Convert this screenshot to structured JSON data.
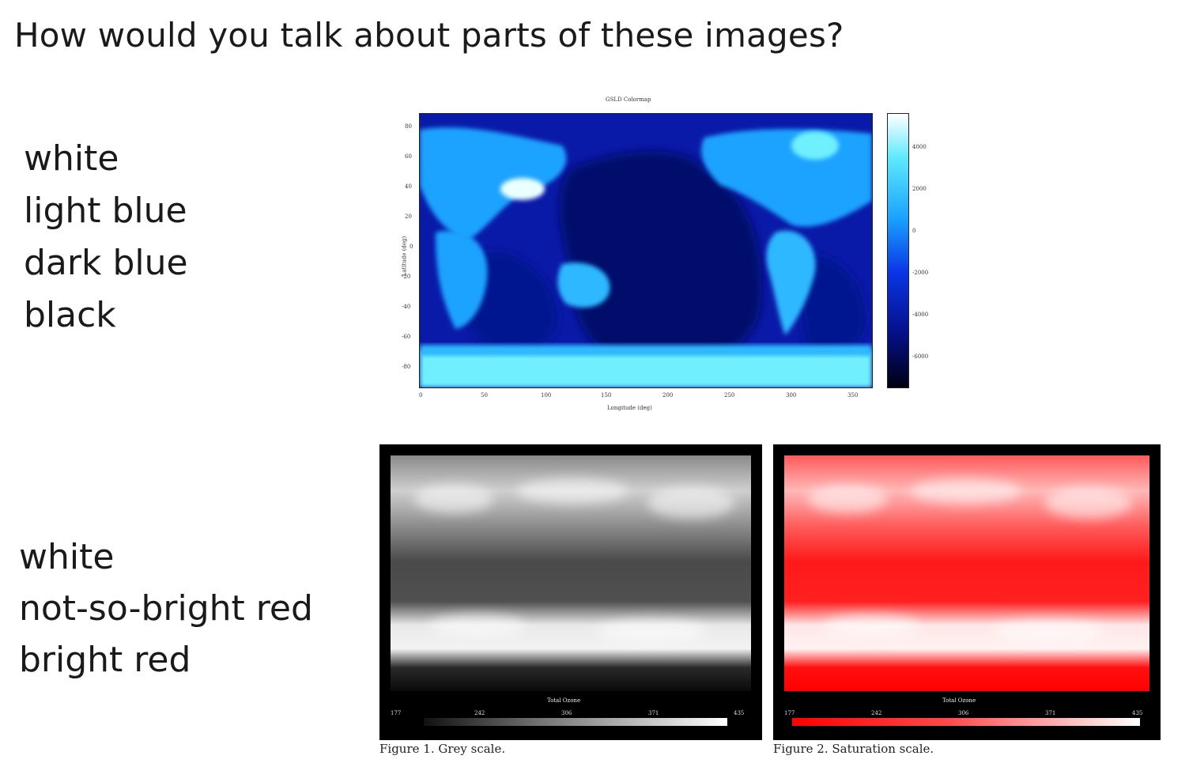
{
  "slide": {
    "title": "How would you talk about parts of these images?"
  },
  "blue_terms": [
    "white",
    "light blue",
    "dark blue",
    "black"
  ],
  "red_terms": [
    "white",
    "not-so-bright red",
    "bright red"
  ],
  "figures": {
    "top_map": {
      "title": "GSLD Colormap",
      "xlabel": "Longitude (deg)",
      "ylabel": "Latitude (deg)",
      "x_ticks": [
        "0",
        "50",
        "100",
        "150",
        "200",
        "250",
        "300",
        "350"
      ],
      "y_ticks": [
        "80",
        "60",
        "40",
        "20",
        "0",
        "-20",
        "-40",
        "-60",
        "-80"
      ],
      "colorbar_ticks": [
        "4000",
        "2000",
        "0",
        "-2000",
        "-4000",
        "-6000"
      ],
      "colors": {
        "white": "#ffffff",
        "light_blue": "#5ee9ff",
        "dark_blue": "#0a1aa8",
        "black": "#000010"
      }
    },
    "grey_panel": {
      "caption": "Figure 1. Grey scale.",
      "bar_title": "Total Ozone",
      "bar_ticks": [
        "177",
        "242",
        "306",
        "371",
        "435"
      ]
    },
    "red_panel": {
      "caption": "Figure 2. Saturation scale.",
      "bar_title": "Total Ozone",
      "bar_ticks": [
        "177",
        "242",
        "306",
        "371",
        "435"
      ],
      "colors": {
        "bright_red": "#ff0000",
        "white": "#ffffff"
      }
    }
  }
}
